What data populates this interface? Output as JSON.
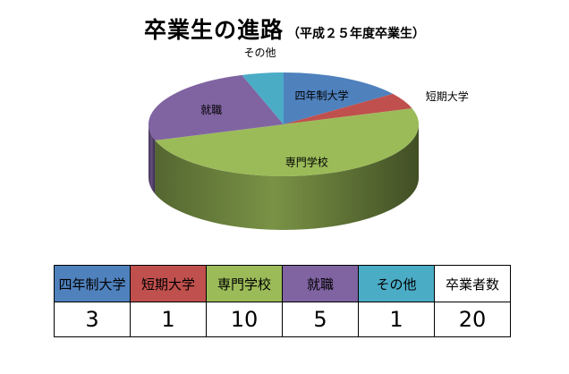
{
  "title": "卒業生の進路",
  "subtitle": "（平成２５年度卒業生）",
  "colors": {
    "univ": "#4f81bd",
    "junior": "#c0504d",
    "vocational": "#9bbb59",
    "employ": "#8064a2",
    "other": "#4bacc6"
  },
  "chart_data": {
    "type": "pie",
    "title": "卒業生の進路",
    "subtitle": "（平成２５年度卒業生）",
    "categories": [
      "四年制大学",
      "短期大学",
      "専門学校",
      "就職",
      "その他"
    ],
    "values": [
      3,
      1,
      10,
      5,
      1
    ],
    "total_label": "卒業者数",
    "total": 20,
    "style": "3d-pie",
    "legend": "none"
  }
}
